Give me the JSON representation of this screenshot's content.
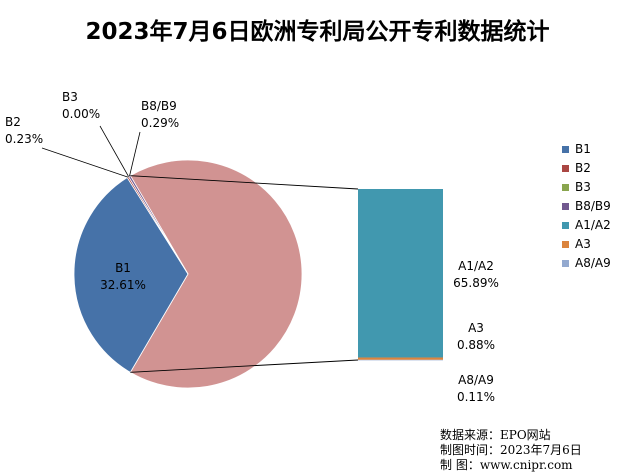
{
  "chart_data": {
    "type": "bar-of-pie",
    "title": "2023年7月6日欧洲专利局公开专利数据统计",
    "slices": [
      {
        "name": "B1",
        "label": "B1",
        "value": 32.61,
        "value_label": "32.61%",
        "color": "#4672a8",
        "group": "pie"
      },
      {
        "name": "B2",
        "label": "B2",
        "value": 0.23,
        "value_label": "0.23%",
        "color": "#aa4643",
        "group": "pie"
      },
      {
        "name": "B3",
        "label": "B3",
        "value": 0.0,
        "value_label": "0.00%",
        "color": "#89a54e",
        "group": "pie"
      },
      {
        "name": "B8/B9",
        "label": "B8/B9",
        "value": 0.29,
        "value_label": "0.29%",
        "color": "#71588f",
        "group": "pie"
      },
      {
        "name": "A1/A2",
        "label": "A1/A2",
        "value": 65.89,
        "value_label": "65.89%",
        "color": "#4198af",
        "group": "bar"
      },
      {
        "name": "A3",
        "label": "A3",
        "value": 0.88,
        "value_label": "0.88%",
        "color": "#db843d",
        "group": "bar"
      },
      {
        "name": "A8/A9",
        "label": "A8/A9",
        "value": 0.11,
        "value_label": "0.11%",
        "color": "#93a9cf",
        "group": "bar"
      }
    ],
    "other_slice_color": "#d19392",
    "legend": {
      "position": "right",
      "entries": [
        "B1",
        "B2",
        "B3",
        "B8/B9",
        "A1/A2",
        "A3",
        "A8/A9"
      ]
    }
  },
  "source": {
    "line1": "数据来源：EPO网站",
    "line2": "制图时间：2023年7月6日",
    "line3": "制      图：www.cnipr.com"
  }
}
